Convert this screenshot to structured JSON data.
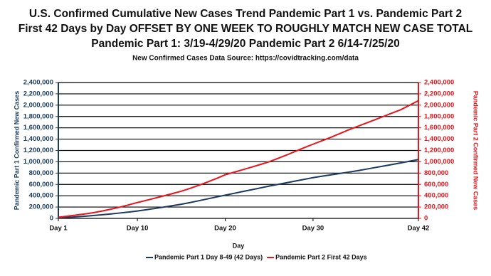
{
  "chart_data": {
    "type": "line",
    "title": "U.S. Confirmed Cumulative New Cases Trend Pandemic Part 1 vs. Pandemic Part 2",
    "title_line2": "First 42 Days by Day OFFSET BY ONE WEEK TO ROUGHLY MATCH NEW CASE TOTAL",
    "title_line3": "Pandemic Part 1: 3/19-4/29/20 Pandemic Part 2 6/14-7/25/20",
    "subtitle": "New Confirmed Cases Data Source: https://covidtracking.com/data",
    "x_label": "Day",
    "y_label": "Pandemic Part 1 Confirmed New Cases",
    "y2_label": "Pandemic Part 2 Confirmed New Cases",
    "x": [
      1,
      2,
      3,
      4,
      5,
      6,
      7,
      8,
      9,
      10,
      11,
      12,
      13,
      14,
      15,
      16,
      17,
      18,
      19,
      20,
      21,
      22,
      23,
      24,
      25,
      26,
      27,
      28,
      29,
      30,
      31,
      32,
      33,
      34,
      35,
      36,
      37,
      38,
      39,
      40,
      41,
      42
    ],
    "xlim": [
      1,
      42
    ],
    "xticks": [
      {
        "value": 1,
        "label": "Day 1"
      },
      {
        "value": 10,
        "label": "Day 10"
      },
      {
        "value": 20,
        "label": "Day 20"
      },
      {
        "value": 30,
        "label": "Day 30"
      },
      {
        "value": 42,
        "label": "Day 42"
      }
    ],
    "ylim": [
      0,
      2400000
    ],
    "yticks": [
      0,
      {
        "value": 200000,
        "label": "200,000"
      },
      {
        "value": 400000,
        "label": "400,000"
      },
      {
        "value": 600000,
        "label": "600,000"
      },
      {
        "value": 800000,
        "label": "800,000"
      },
      {
        "value": 1000000,
        "label": "1,000,000"
      },
      {
        "value": 1200000,
        "label": "1,200,000"
      },
      {
        "value": 1400000,
        "label": "1,400,000"
      },
      {
        "value": 1600000,
        "label": "1,600,000"
      },
      {
        "value": 1800000,
        "label": "1,800,000"
      },
      {
        "value": 2000000,
        "label": "2,000,000"
      },
      {
        "value": 2200000,
        "label": "2,200,000"
      },
      {
        "value": 2400000,
        "label": "2,400,000"
      }
    ],
    "y2lim": [
      0,
      2400000
    ],
    "y2ticks": [
      0,
      {
        "value": 200000,
        "label": "200,000"
      },
      {
        "value": 400000,
        "label": "400,000"
      },
      {
        "value": 600000,
        "label": "600,000"
      },
      {
        "value": 800000,
        "label": "800,000"
      },
      {
        "value": 1000000,
        "label": "1,000,000"
      },
      {
        "value": 1200000,
        "label": "1,200,000"
      },
      {
        "value": 1400000,
        "label": "1,400,000"
      },
      {
        "value": 1600000,
        "label": "1,600,000"
      },
      {
        "value": 1800000,
        "label": "1,800,000"
      },
      {
        "value": 2000000,
        "label": "2,000,000"
      },
      {
        "value": 2200000,
        "label": "2,200,000"
      },
      {
        "value": 2400000,
        "label": "2,400,000"
      }
    ],
    "grid": true,
    "legend": "bottom",
    "series": [
      {
        "name": "Pandemic Part 1 Day 8-49 (42 Days)",
        "color": "#1b3a5c",
        "values": [
          10000,
          18000,
          27000,
          38000,
          50000,
          64000,
          79000,
          95000,
          112000,
          130000,
          152000,
          175000,
          199000,
          224000,
          250000,
          280000,
          312000,
          345000,
          378000,
          410000,
          442000,
          474000,
          506000,
          538000,
          570000,
          600000,
          630000,
          660000,
          690000,
          720000,
          744000,
          768000,
          792000,
          816000,
          840000,
          868000,
          896000,
          924000,
          952000,
          980000,
          1010000,
          1040000
        ]
      },
      {
        "name": "Pandemic Part 2 First 42 Days",
        "color": "#e8141b",
        "axis": "y2",
        "values": [
          20000,
          38000,
          58000,
          78000,
          100000,
          130000,
          163000,
          199000,
          238000,
          280000,
          318000,
          357000,
          397000,
          438000,
          480000,
          530000,
          585000,
          643000,
          705000,
          770000,
          815000,
          860000,
          905000,
          952000,
          1000000,
          1060000,
          1120000,
          1185000,
          1250000,
          1310000,
          1370000,
          1430000,
          1495000,
          1560000,
          1620000,
          1680000,
          1740000,
          1800000,
          1860000,
          1920000,
          2000000,
          2080000
        ]
      }
    ]
  }
}
